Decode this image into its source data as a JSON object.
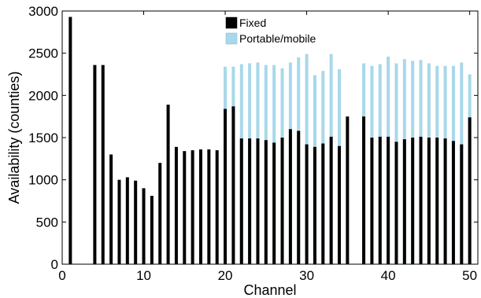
{
  "chart_data": {
    "type": "bar",
    "xlabel": "Channel",
    "ylabel": "Availability (counties)",
    "xlim": [
      0,
      51
    ],
    "ylim": [
      0,
      3000
    ],
    "xticks": [
      0,
      10,
      20,
      30,
      40,
      50
    ],
    "yticks": [
      0,
      500,
      1000,
      1500,
      2000,
      2500,
      3000
    ],
    "grid": false,
    "legend_position": "top-center",
    "series": [
      {
        "name": "Fixed",
        "color": "#000000",
        "x": [
          1,
          4,
          5,
          6,
          7,
          8,
          9,
          10,
          11,
          12,
          13,
          14,
          15,
          16,
          17,
          18,
          19,
          20,
          21,
          22,
          23,
          24,
          25,
          26,
          27,
          28,
          29,
          30,
          31,
          32,
          33,
          34,
          35,
          37,
          38,
          39,
          40,
          41,
          42,
          43,
          44,
          45,
          46,
          47,
          48,
          49,
          50
        ],
        "values": [
          2930,
          2360,
          2360,
          1300,
          1000,
          1030,
          990,
          900,
          810,
          1200,
          1890,
          1390,
          1340,
          1350,
          1360,
          1360,
          1350,
          1840,
          1870,
          1490,
          1490,
          1490,
          1470,
          1440,
          1500,
          1600,
          1580,
          1420,
          1390,
          1430,
          1510,
          1400,
          1750,
          1750,
          1500,
          1510,
          1510,
          1450,
          1480,
          1500,
          1510,
          1500,
          1500,
          1490,
          1460,
          1420,
          1740
        ]
      },
      {
        "name": "Portable/mobile",
        "color": "#a8d8ea",
        "x": [
          20,
          21,
          22,
          23,
          24,
          25,
          26,
          27,
          28,
          29,
          30,
          31,
          32,
          33,
          34,
          37,
          38,
          39,
          40,
          41,
          42,
          43,
          44,
          45,
          46,
          47,
          48,
          49,
          50
        ],
        "values": [
          2340,
          2340,
          2370,
          2380,
          2390,
          2360,
          2360,
          2320,
          2390,
          2450,
          2490,
          2240,
          2290,
          2490,
          2310,
          2380,
          2350,
          2370,
          2460,
          2380,
          2430,
          2410,
          2420,
          2380,
          2350,
          2350,
          2350,
          2390,
          2250
        ]
      }
    ]
  }
}
